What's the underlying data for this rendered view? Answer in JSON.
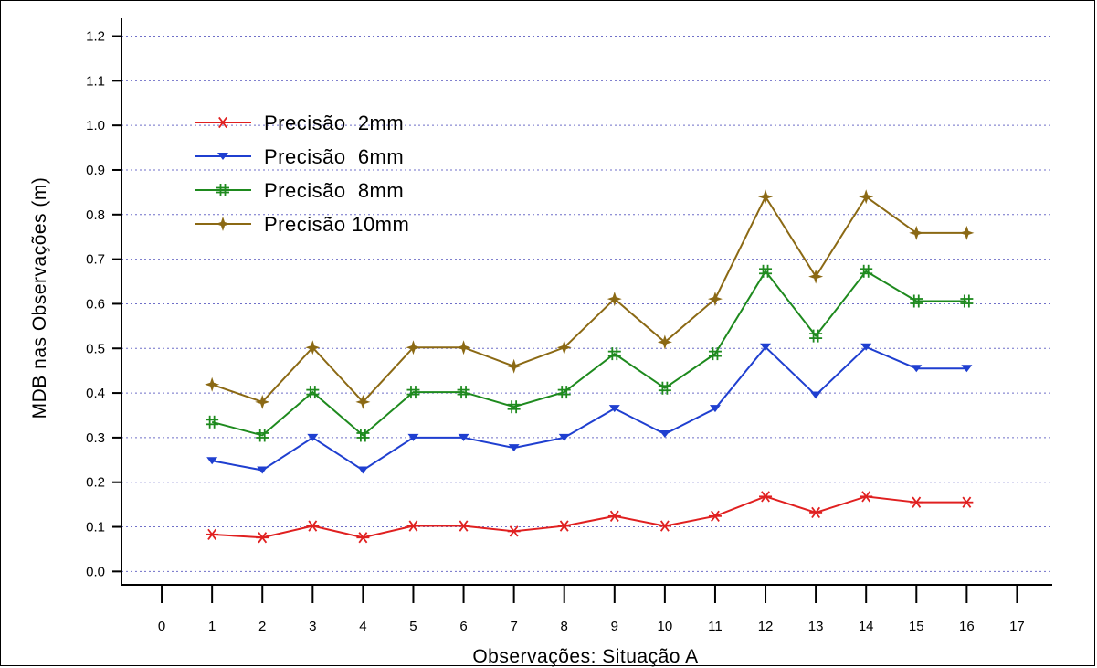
{
  "chart_data": {
    "type": "line",
    "title": "",
    "xlabel": "Observações: Situação A",
    "ylabel": "MDB nas Observações (m)",
    "xlim": [
      -0.8,
      17.7
    ],
    "ylim": [
      -0.03,
      1.24
    ],
    "x_ticks": [
      0,
      1,
      2,
      3,
      4,
      5,
      6,
      7,
      8,
      9,
      10,
      11,
      12,
      13,
      14,
      15,
      16,
      17
    ],
    "y_ticks": [
      "0.0",
      "0.1",
      "0.2",
      "0.3",
      "0.4",
      "0.5",
      "0.6",
      "0.7",
      "0.8",
      "0.9",
      "1.0",
      "1.1",
      "1.2"
    ],
    "grid": "horizontal dotted",
    "legend_position": "top-left",
    "x": [
      1,
      2,
      3,
      4,
      5,
      6,
      7,
      8,
      9,
      10,
      11,
      12,
      13,
      14,
      15,
      16
    ],
    "series": [
      {
        "name": "Precisão  2mm",
        "color": "#e02020",
        "marker": "asterisk",
        "values": [
          0.083,
          0.076,
          0.102,
          0.076,
          0.102,
          0.102,
          0.09,
          0.102,
          0.124,
          0.102,
          0.124,
          0.168,
          0.132,
          0.168,
          0.155,
          0.155
        ]
      },
      {
        "name": "Precisão  6mm",
        "color": "#1f3fd0",
        "marker": "triangle-down",
        "values": [
          0.248,
          0.227,
          0.3,
          0.227,
          0.3,
          0.3,
          0.277,
          0.3,
          0.365,
          0.308,
          0.365,
          0.503,
          0.395,
          0.503,
          0.455,
          0.455
        ]
      },
      {
        "name": "Precisão  8mm",
        "color": "#1e8a1e",
        "marker": "double-cross",
        "values": [
          0.335,
          0.305,
          0.402,
          0.305,
          0.402,
          0.402,
          0.369,
          0.402,
          0.488,
          0.411,
          0.488,
          0.673,
          0.528,
          0.673,
          0.606,
          0.606
        ]
      },
      {
        "name": "Precisão 10mm",
        "color": "#8b6914",
        "marker": "star4",
        "values": [
          0.419,
          0.38,
          0.502,
          0.38,
          0.502,
          0.502,
          0.46,
          0.502,
          0.611,
          0.514,
          0.611,
          0.84,
          0.661,
          0.84,
          0.759,
          0.759
        ]
      }
    ]
  }
}
